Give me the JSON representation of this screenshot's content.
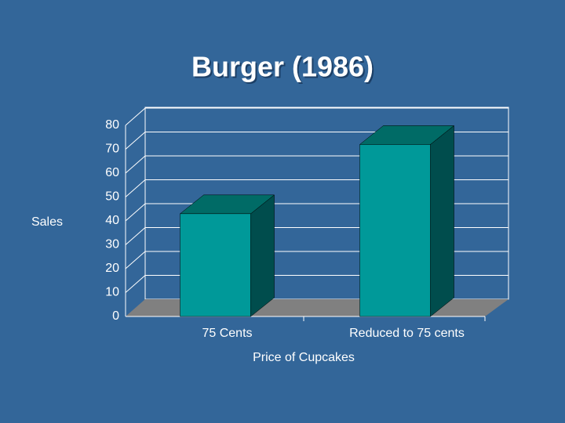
{
  "chart_data": {
    "type": "bar",
    "title": "Burger (1986)",
    "categories": [
      "75 Cents",
      "Reduced to 75 cents"
    ],
    "values": [
      43,
      72
    ],
    "color": "#009999",
    "xlabel": "Price of Cupcakes",
    "ylabel": "Sales",
    "ylim": [
      0,
      80
    ],
    "yticks": [
      0,
      10,
      20,
      30,
      40,
      50,
      60,
      70,
      80
    ],
    "grid": true
  }
}
